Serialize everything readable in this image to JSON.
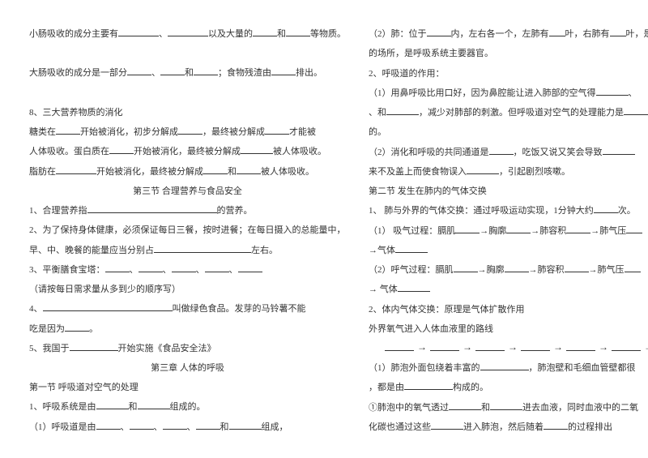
{
  "left": {
    "l1_a": "小肠吸收的成分主要有",
    "l1_b": "、",
    "l1_c": "以及大量的",
    "l1_d": "和",
    "l1_e": "等物质。",
    "l2_a": "大肠吸收的成分是一部分",
    "l2_b": "、",
    "l2_c": "和",
    "l2_d": "；食物残渣由",
    "l2_e": "排出。",
    "l3": "8、三大营养物质的消化",
    "l4_a": "    糖类在",
    "l4_b": "开始被消化，初步分解成",
    "l4_c": "，最终被分解成",
    "l4_d": "才能被",
    "l5_a": "人体吸收。蛋白质在",
    "l5_b": "开始被消化，最终被分解成",
    "l5_c": "被人体吸收。",
    "l6_a": "脂肪在",
    "l6_b": "开始被消化，最终被分解成",
    "l6_c": "和",
    "l6_d": "被人体吸收。",
    "l7": "第三节  合理营养与食品安全",
    "l8_a": "1、合理营养指",
    "l8_b": "的营养。",
    "l9": "2、为了保持身体健康，必须保证每日三餐，按时进餐；在每日摄入的总能量中，",
    "l10_a": "早、中、晚餐的能量应当分别占",
    "l10_b": "左右。",
    "l11_a": "3、平衡膳食宝塔：",
    "l11_b": "、",
    "l11_c": "、",
    "l11_d": "、",
    "l11_e": "、",
    "l12": "（请按每日需求量从多到少的顺序写）",
    "l13_a": "4、",
    "l13_b": "叫做绿色食品。发芽的马铃薯不能",
    "l14_a": "吃是因为",
    "l14_b": "。",
    "l15_a": "5、我国于",
    "l15_b": "开始实施《食品安全法》",
    "l16": "第三章  人体的呼吸",
    "l17": "第一节  呼吸道对空气的处理",
    "l18_a": "1、呼吸系统是由",
    "l18_b": "和",
    "l18_c": "组成的。",
    "l19_a": "（1）呼吸道是由",
    "l19_b": "、",
    "l19_c": "、",
    "l19_d": "、",
    "l19_e": "和",
    "l19_f": "组成，"
  },
  "right": {
    "r1_a": "（2）肺：位于",
    "r1_b": "内，左右各一个，左肺有",
    "r1_c": "叶，右肺有",
    "r1_d": "叶，是",
    "r2": "的场所，是呼吸系统主要器官。",
    "r3": "2、呼吸道的作用：",
    "r4_a": "    （1）用鼻呼吸比用口好，因为鼻腔能让进入肺部的空气得",
    "r4_b": "、",
    "r5_a": "、和",
    "r5_b": "，减少对肺部的刺激。但呼吸道对空气的处理能力是",
    "r6": "的。",
    "r7_a": "    （2）消化和呼吸的共同通道是",
    "r7_b": "，吃饭又说又笑会导致",
    "r8_a": "来不及盖上而使食物误入",
    "r8_b": "，引起剧烈咳嗽。",
    "r9": "第二节 发生在肺内的气体交换",
    "r10_a": "1、  肺与外界的气体交换：通过呼吸运动实现，1分钟大约",
    "r10_b": "次。",
    "r11_a": "（1）  吸气过程：膈肌",
    "r11_b": "→胸廓",
    "r11_c": "→肺容积",
    "r11_d": "→肺气压",
    "r12_a": "         →气体",
    "r13_a": "（2）呼气过程：膈肌",
    "r13_b": "→胸廓",
    "r13_c": "→肺容积",
    "r13_d": "→肺气压",
    "r14": "→  气体",
    "r15": "2、体内气体交换：原理是气体扩散作用",
    "r16": "    外界氧气进入人体血液里的路线",
    "r17_a": "（1）肺泡外面包绕着丰富的",
    "r17_b": "，肺泡壁和毛细血管壁都很",
    "r18_a": "    ，都是由",
    "r18_b": "构成的。",
    "r19_a": "    ①肺泡中的氧气透过",
    "r19_b": "和",
    "r19_c": "进去血液，同时血液中的二氧",
    "r20_a": "    化碳也通过这些",
    "r20_b": "进入肺泡，然后随着",
    "r20_c": "的过程排出"
  }
}
